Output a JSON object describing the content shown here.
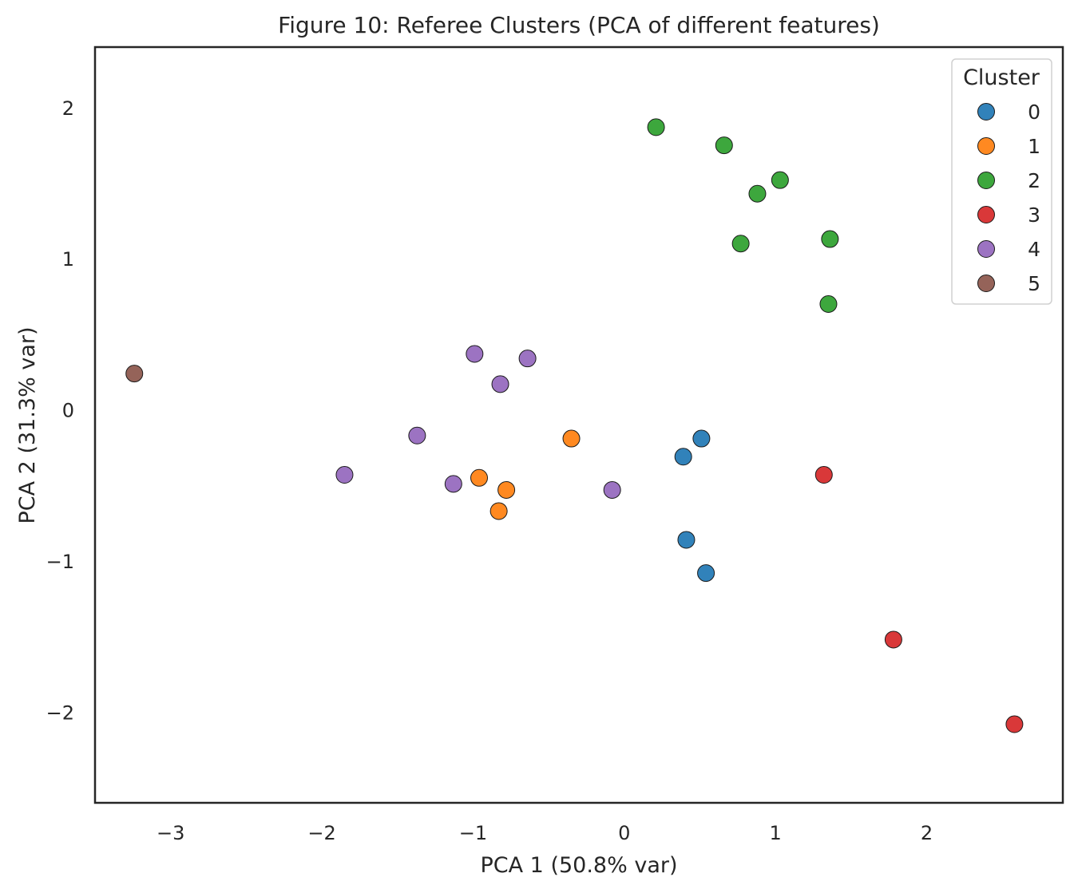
{
  "chart_data": {
    "type": "scatter",
    "title": "Figure 10: Referee Clusters (PCA of different features)",
    "xlabel": "PCA 1 (50.8% var)",
    "ylabel": "PCA 2 (31.3% var)",
    "xlim": [
      -3.5,
      2.9
    ],
    "ylim": [
      -2.6,
      2.4
    ],
    "xticks": [
      -3,
      -2,
      -1,
      0,
      1,
      2
    ],
    "yticks": [
      -2,
      -1,
      0,
      1,
      2
    ],
    "xtick_labels": [
      "−3",
      "−2",
      "−1",
      "0",
      "1",
      "2"
    ],
    "ytick_labels": [
      "−2",
      "−1",
      "0",
      "1",
      "2"
    ],
    "grid": false,
    "legend": {
      "title": "Cluster",
      "placement": "top-right"
    },
    "series": [
      {
        "name": "0",
        "color": "#1f77b4",
        "points": [
          [
            0.51,
            -0.19
          ],
          [
            0.39,
            -0.31
          ],
          [
            0.41,
            -0.86
          ],
          [
            0.54,
            -1.08
          ]
        ]
      },
      {
        "name": "1",
        "color": "#ff7f0e",
        "points": [
          [
            -0.35,
            -0.19
          ],
          [
            -0.96,
            -0.45
          ],
          [
            -0.78,
            -0.53
          ],
          [
            -0.83,
            -0.67
          ]
        ]
      },
      {
        "name": "2",
        "color": "#2ca02c",
        "points": [
          [
            0.21,
            1.87
          ],
          [
            0.66,
            1.75
          ],
          [
            1.03,
            1.52
          ],
          [
            0.88,
            1.43
          ],
          [
            1.36,
            1.13
          ],
          [
            0.77,
            1.1
          ],
          [
            1.35,
            0.7
          ]
        ]
      },
      {
        "name": "3",
        "color": "#d62728",
        "points": [
          [
            1.32,
            -0.43
          ],
          [
            1.78,
            -1.52
          ],
          [
            2.58,
            -2.08
          ]
        ]
      },
      {
        "name": "4",
        "color": "#9467bd",
        "points": [
          [
            -0.99,
            0.37
          ],
          [
            -0.64,
            0.34
          ],
          [
            -0.82,
            0.17
          ],
          [
            -1.37,
            -0.17
          ],
          [
            -1.85,
            -0.43
          ],
          [
            -1.13,
            -0.49
          ],
          [
            -0.08,
            -0.53
          ]
        ]
      },
      {
        "name": "5",
        "color": "#8c564b",
        "points": [
          [
            -3.24,
            0.24
          ]
        ]
      }
    ]
  }
}
